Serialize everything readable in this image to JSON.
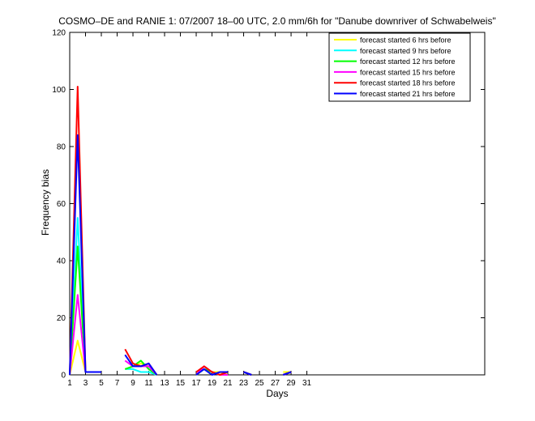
{
  "chart_data": {
    "type": "line",
    "title": "COSMO–DE and RANIE 1: 07/2007 18–00 UTC, 2.0 mm/6h for \"Danube downriver of Schwabelweis\"",
    "xlabel": "Days",
    "ylabel": "Frequency bias",
    "xlim": [
      1,
      53.5
    ],
    "ylim": [
      0,
      120
    ],
    "xticks": [
      "1",
      "3",
      "5",
      "7",
      "9",
      "11",
      "13",
      "15",
      "17",
      "19",
      "21",
      "23",
      "25",
      "27",
      "29",
      "31"
    ],
    "yticks": [
      "0",
      "20",
      "40",
      "60",
      "80",
      "100",
      "120"
    ],
    "legend_position": "top-right",
    "series": [
      {
        "name": "forecast started 6 hrs before",
        "color": "#ffff00",
        "x": [
          1,
          2,
          3,
          4,
          5,
          null,
          8,
          9,
          10,
          11,
          12,
          null,
          17,
          18,
          19,
          20,
          21,
          null,
          23,
          24,
          null,
          28,
          29
        ],
        "y": [
          0,
          12,
          1,
          1,
          1,
          null,
          2,
          3,
          4,
          3,
          0,
          null,
          0,
          2,
          1,
          1,
          0,
          null,
          1,
          0,
          null,
          1,
          1
        ]
      },
      {
        "name": "forecast started 9 hrs before",
        "color": "#00ffff",
        "x": [
          1,
          2,
          3,
          4,
          5,
          null,
          8,
          9,
          10,
          11,
          12,
          null,
          17,
          18,
          19,
          20,
          21,
          null,
          23,
          24,
          null,
          28,
          29
        ],
        "y": [
          0,
          55,
          1,
          1,
          1,
          null,
          2,
          2,
          1,
          1,
          0,
          null,
          0,
          2,
          1,
          0,
          0,
          null,
          1,
          0,
          null,
          0,
          1
        ]
      },
      {
        "name": "forecast started 12 hrs before",
        "color": "#00ff00",
        "x": [
          1,
          2,
          3,
          4,
          5,
          null,
          8,
          9,
          10,
          11,
          12,
          null,
          17,
          18,
          19,
          20,
          21,
          null,
          23,
          24,
          null,
          28,
          29
        ],
        "y": [
          0,
          45,
          1,
          1,
          1,
          null,
          2,
          3,
          5,
          2,
          0,
          null,
          0,
          2,
          1,
          0,
          0,
          null,
          1,
          0,
          null,
          0,
          1
        ]
      },
      {
        "name": "forecast started 15 hrs before",
        "color": "#ff00ff",
        "x": [
          1,
          2,
          3,
          4,
          5,
          null,
          8,
          9,
          10,
          11,
          12,
          null,
          17,
          18,
          19,
          20,
          21,
          null,
          23,
          24,
          null,
          28,
          29
        ],
        "y": [
          0,
          28,
          1,
          1,
          1,
          null,
          5,
          3,
          3,
          3,
          0,
          null,
          0,
          3,
          1,
          0,
          0,
          null,
          1,
          0,
          null,
          0,
          1
        ]
      },
      {
        "name": "forecast started 18 hrs before",
        "color": "#ff0000",
        "x": [
          1,
          2,
          3,
          4,
          5,
          null,
          8,
          9,
          10,
          11,
          12,
          null,
          17,
          18,
          19,
          20,
          21,
          null,
          23,
          24,
          null,
          28,
          29
        ],
        "y": [
          0,
          101,
          1,
          1,
          1,
          null,
          9,
          4,
          3,
          4,
          0,
          null,
          1,
          3,
          1,
          0,
          1,
          null,
          1,
          0,
          null,
          0,
          1
        ]
      },
      {
        "name": "forecast started 21 hrs before",
        "color": "#0000ff",
        "x": [
          1,
          2,
          3,
          4,
          5,
          null,
          8,
          9,
          10,
          11,
          12,
          null,
          17,
          18,
          19,
          20,
          21,
          null,
          23,
          24,
          null,
          28,
          29
        ],
        "y": [
          0,
          84,
          1,
          1,
          1,
          null,
          7,
          3,
          3,
          4,
          0,
          null,
          0,
          2,
          0,
          1,
          1,
          null,
          1,
          0,
          null,
          0,
          1
        ]
      }
    ]
  }
}
